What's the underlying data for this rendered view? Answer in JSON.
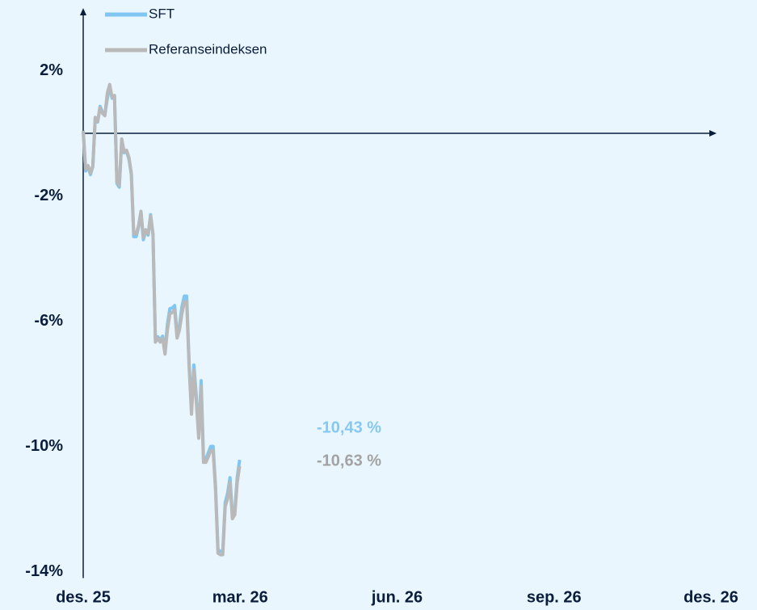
{
  "chart_data": {
    "type": "line",
    "x": [
      0,
      0.046,
      0.092,
      0.138,
      0.184,
      0.23,
      0.276,
      0.322,
      0.368,
      0.414,
      0.46,
      0.506,
      0.552,
      0.598,
      0.644,
      0.69,
      0.736,
      0.782,
      0.828,
      0.874,
      0.92,
      0.966,
      1.012,
      1.058,
      1.104,
      1.15,
      1.196,
      1.242,
      1.288,
      1.334,
      1.38,
      1.426,
      1.472,
      1.518,
      1.564,
      1.61,
      1.656,
      1.702,
      1.748,
      1.794,
      1.84,
      1.886,
      1.932,
      1.978,
      2.024,
      2.07,
      2.116,
      2.162,
      2.208,
      2.254,
      2.3,
      2.346,
      2.392,
      2.438,
      2.484,
      2.53,
      2.576,
      2.622,
      2.668,
      2.714,
      2.76,
      2.806,
      2.852,
      2.898,
      2.944,
      2.99
    ],
    "series": [
      {
        "name": "SFT",
        "color": "#7fc6f2",
        "values": [
          0.08,
          -1.2,
          -1.08,
          -1.32,
          -1.06,
          0.48,
          0.36,
          0.86,
          0.68,
          0.6,
          1.1,
          1.5,
          1.12,
          1.18,
          -1.6,
          -1.72,
          -0.22,
          -0.62,
          -0.58,
          -0.82,
          -1.32,
          -3.3,
          -3.3,
          -3.0,
          -2.55,
          -3.4,
          -3.12,
          -3.25,
          -2.6,
          -3.25,
          -6.6,
          -6.5,
          -6.6,
          -6.48,
          -6.95,
          -6.1,
          -5.6,
          -5.58,
          -5.5,
          -6.4,
          -6.15,
          -5.55,
          -5.2,
          -5.2,
          -7.3,
          -8.8,
          -7.4,
          -8.4,
          -9.6,
          -7.9,
          -10.4,
          -10.4,
          -10.2,
          -10.0,
          -10.0,
          -11.3,
          -13.3,
          -13.35,
          -13.35,
          -11.8,
          -11.5,
          -11.0,
          -12.2,
          -12.05,
          -11.0,
          -10.43
        ]
      },
      {
        "name": "Referanseindeksen",
        "color": "#b9b9b9",
        "values": [
          0.08,
          -1.15,
          -1.03,
          -1.28,
          -1.03,
          0.51,
          0.38,
          0.82,
          0.64,
          0.56,
          1.28,
          1.56,
          1.15,
          1.21,
          -1.54,
          -1.67,
          -0.18,
          -0.59,
          -0.54,
          -0.77,
          -1.28,
          -3.21,
          -3.21,
          -2.95,
          -2.49,
          -3.33,
          -3.08,
          -3.21,
          -2.64,
          -3.21,
          -6.67,
          -6.54,
          -6.67,
          -6.54,
          -7.05,
          -6.28,
          -5.77,
          -5.72,
          -5.64,
          -6.54,
          -6.28,
          -5.77,
          -5.38,
          -5.38,
          -7.44,
          -8.97,
          -7.56,
          -8.59,
          -9.74,
          -8.08,
          -10.51,
          -10.51,
          -10.33,
          -10.13,
          -10.13,
          -11.41,
          -13.41,
          -13.46,
          -13.46,
          -11.92,
          -11.67,
          -11.15,
          -12.31,
          -12.18,
          -11.15,
          -10.63
        ]
      }
    ],
    "annotations": [
      {
        "text": "-10,43 %",
        "color": "#86c8f0"
      },
      {
        "text": "-10,63 %",
        "color": "#a3a3a3"
      }
    ],
    "xlim": [
      0,
      12
    ],
    "xticks": [
      {
        "value": 0,
        "label": "des. 25"
      },
      {
        "value": 3,
        "label": "mar. 26"
      },
      {
        "value": 6,
        "label": "jun. 26"
      },
      {
        "value": 9,
        "label": "sep. 26"
      },
      {
        "value": 12,
        "label": "des. 26"
      }
    ],
    "ylim": [
      -14,
      4
    ],
    "yticks": [
      {
        "value": 2,
        "label": "2%"
      },
      {
        "value": -2,
        "label": "-2%"
      },
      {
        "value": -6,
        "label": "-6%"
      },
      {
        "value": -10,
        "label": "-10%"
      },
      {
        "value": -14,
        "label": "-14%"
      }
    ],
    "grid": false,
    "legend": "top"
  }
}
